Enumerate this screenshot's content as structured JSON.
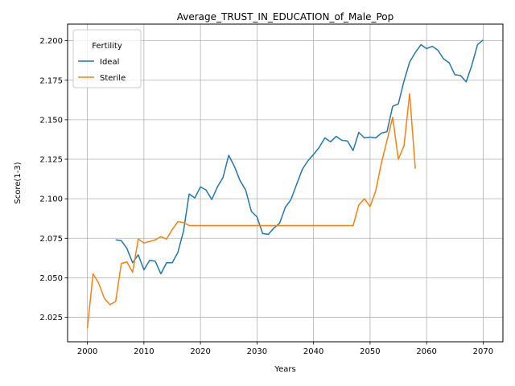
{
  "chart_data": {
    "type": "line",
    "title": "Average_TRUST_IN_EDUCATION_of_Male_Pop",
    "xlabel": "Years",
    "ylabel": "Score(1-3)",
    "xlim": [
      1996.5,
      2073.5
    ],
    "ylim": [
      2.0095,
      2.2105
    ],
    "x_ticks": [
      2000,
      2010,
      2020,
      2030,
      2040,
      2050,
      2060,
      2070
    ],
    "y_ticks": [
      2.025,
      2.05,
      2.075,
      2.1,
      2.125,
      2.15,
      2.175,
      2.2
    ],
    "y_tick_labels": [
      "2.025",
      "2.050",
      "2.075",
      "2.100",
      "2.125",
      "2.150",
      "2.175",
      "2.200"
    ],
    "grid": true,
    "legend": {
      "title": "Fertility",
      "placement": "top-left",
      "entries": [
        "Ideal",
        "Sterile"
      ]
    },
    "series": [
      {
        "name": "Ideal",
        "color": "#1f77b4",
        "x": [
          2005,
          2006,
          2007,
          2008,
          2009,
          2010,
          2011,
          2012,
          2013,
          2014,
          2015,
          2016,
          2017,
          2018,
          2019,
          2020,
          2021,
          2022,
          2023,
          2024,
          2025,
          2026,
          2027,
          2028,
          2029,
          2030,
          2031,
          2032,
          2033,
          2034,
          2035,
          2036,
          2037,
          2038,
          2039,
          2040,
          2041,
          2042,
          2043,
          2044,
          2045,
          2046,
          2047,
          2048,
          2049,
          2050,
          2051,
          2052,
          2053,
          2054,
          2055,
          2056,
          2057,
          2058,
          2059,
          2060,
          2061,
          2062,
          2063,
          2064,
          2065,
          2066,
          2067,
          2068,
          2069,
          2070
        ],
        "values": [
          2.074,
          2.0735,
          2.0685,
          2.0595,
          2.0645,
          2.055,
          2.061,
          2.0605,
          2.0525,
          2.0595,
          2.0595,
          2.066,
          2.0795,
          2.103,
          2.1005,
          2.1075,
          2.1055,
          2.0995,
          2.1075,
          2.1135,
          2.1275,
          2.1205,
          2.1115,
          2.1055,
          2.092,
          2.0885,
          2.078,
          2.0775,
          2.0815,
          2.0845,
          2.0945,
          2.0995,
          2.109,
          2.1185,
          2.124,
          2.128,
          2.1325,
          2.1385,
          2.136,
          2.1395,
          2.137,
          2.1365,
          2.1305,
          2.142,
          2.1385,
          2.139,
          2.1385,
          2.1415,
          2.1425,
          2.1585,
          2.16,
          2.1745,
          2.1865,
          2.1925,
          2.1975,
          2.195,
          2.1965,
          2.194,
          2.1885,
          2.186,
          2.1785,
          2.178,
          2.174,
          2.1845,
          2.1975,
          2.2005
        ]
      },
      {
        "name": "Sterile",
        "color": "#ff7f0e",
        "x": [
          2000,
          2001,
          2002,
          2003,
          2004,
          2005,
          2006,
          2007,
          2008,
          2009,
          2010,
          2011,
          2012,
          2013,
          2014,
          2015,
          2016,
          2017,
          2018,
          2019,
          2020,
          2021,
          2022,
          2023,
          2024,
          2025,
          2026,
          2027,
          2028,
          2029,
          2030,
          2031,
          2032,
          2033,
          2034,
          2035,
          2036,
          2037,
          2038,
          2039,
          2040,
          2041,
          2042,
          2043,
          2044,
          2045,
          2046,
          2047,
          2048,
          2049,
          2050,
          2051,
          2052,
          2053,
          2054,
          2055,
          2056,
          2057,
          2058
        ],
        "values": [
          2.018,
          2.0525,
          2.0465,
          2.037,
          2.033,
          2.035,
          2.059,
          2.06,
          2.0535,
          2.0745,
          2.072,
          2.073,
          2.074,
          2.076,
          2.0745,
          2.0805,
          2.0855,
          2.085,
          2.083,
          2.083,
          2.083,
          2.083,
          2.083,
          2.083,
          2.083,
          2.083,
          2.083,
          2.083,
          2.083,
          2.083,
          2.083,
          2.083,
          2.083,
          2.083,
          2.083,
          2.083,
          2.083,
          2.083,
          2.083,
          2.083,
          2.083,
          2.083,
          2.083,
          2.083,
          2.083,
          2.083,
          2.083,
          2.083,
          2.096,
          2.1,
          2.095,
          2.105,
          2.1225,
          2.137,
          2.1515,
          2.125,
          2.1335,
          2.1665,
          2.119
        ]
      }
    ]
  }
}
